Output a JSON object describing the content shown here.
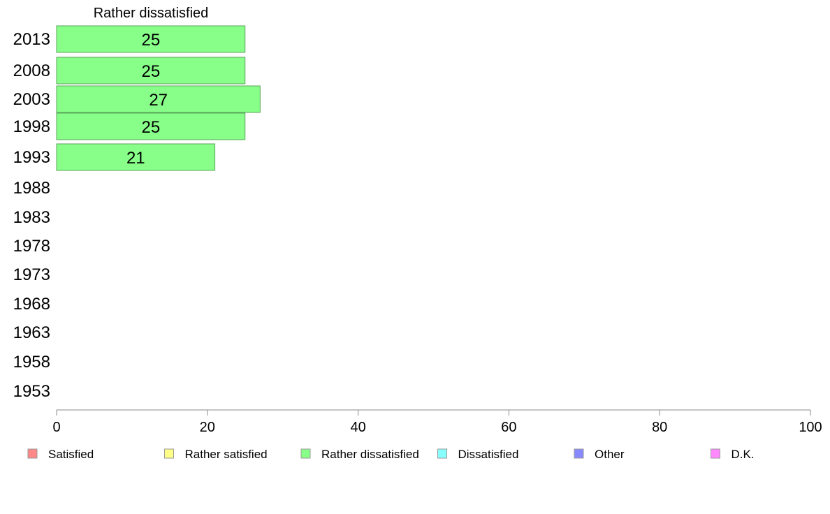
{
  "chart_data": {
    "type": "bar",
    "orientation": "horizontal",
    "title": "Rather dissatisfied",
    "categories": [
      "2013",
      "2008",
      "2003",
      "1998",
      "1993",
      "1988",
      "1983",
      "1978",
      "1973",
      "1968",
      "1963",
      "1958",
      "1953"
    ],
    "series": [
      {
        "name": "Rather dissatisfied",
        "color": "#88ff88",
        "values": [
          25,
          25,
          27,
          25,
          21,
          null,
          null,
          null,
          null,
          null,
          null,
          null,
          null
        ]
      }
    ],
    "data_labels": [
      "25",
      "25",
      "27",
      "25",
      "21",
      "",
      "",
      "",
      "",
      "",
      "",
      "",
      ""
    ],
    "xlim": [
      0,
      100
    ],
    "xticks": [
      0,
      20,
      40,
      60,
      80,
      100
    ],
    "grid": false,
    "legend_position": "bottom",
    "legend": [
      {
        "label": "Satisfied",
        "color": "#ff8888"
      },
      {
        "label": "Rather satisfied",
        "color": "#ffff88"
      },
      {
        "label": "Rather dissatisfied",
        "color": "#88ff88"
      },
      {
        "label": "Dissatisfied",
        "color": "#88ffff"
      },
      {
        "label": "Other",
        "color": "#8888ff"
      },
      {
        "label": "D.K.",
        "color": "#ff88ff"
      }
    ]
  }
}
